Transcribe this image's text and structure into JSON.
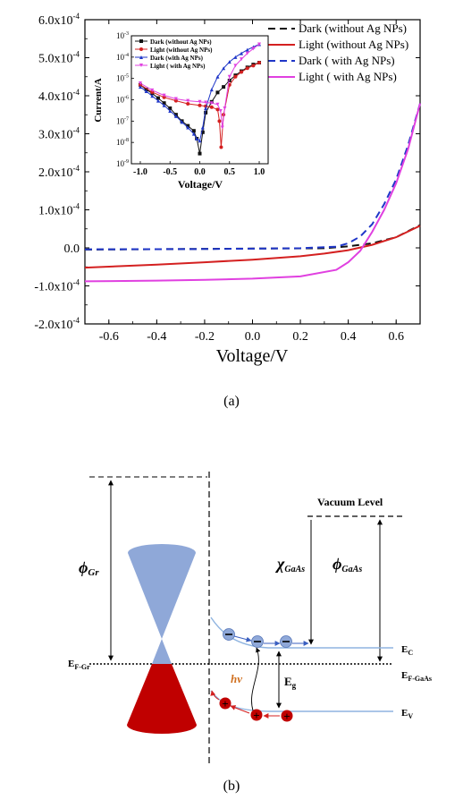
{
  "panel_a": {
    "caption": "(a)",
    "xlabel": "Voltage/V",
    "y_ticks": [
      {
        "mant": "6.0x10",
        "exp": "-4"
      },
      {
        "mant": "5.0x10",
        "exp": "-4"
      },
      {
        "mant": "4.0x10",
        "exp": "-4"
      },
      {
        "mant": "3.0x10",
        "exp": "-4"
      },
      {
        "mant": "2.0x10",
        "exp": "-4"
      },
      {
        "mant": "1.0x10",
        "exp": "-4"
      },
      {
        "mant": "0.0",
        "exp": ""
      },
      {
        "mant": "-1.0x10",
        "exp": "-4"
      },
      {
        "mant": "-2.0x10",
        "exp": "-4"
      }
    ],
    "x_ticks": [
      "-0.6",
      "-0.4",
      "-0.2",
      "0.0",
      "0.2",
      "0.4",
      "0.6"
    ],
    "legend": [
      {
        "label": "Dark (without  Ag NPs)",
        "color": "#111111",
        "dash": "8,5"
      },
      {
        "label": "Light (without  Ag NPs)",
        "color": "#d42020",
        "dash": ""
      },
      {
        "label": "Dark ( with Ag NPs)",
        "color": "#1f36c8",
        "dash": "8,5"
      },
      {
        "label": "Light ( with Ag NPs)",
        "color": "#e040e0",
        "dash": ""
      }
    ],
    "inset": {
      "xlabel": "Voltage/V",
      "ylabel": "Current/A",
      "x_ticks": [
        "-1.0",
        "-0.5",
        "0.0",
        "0.5",
        "1.0"
      ],
      "y_ticks": [
        {
          "mant": "10",
          "exp": "-3"
        },
        {
          "mant": "10",
          "exp": "-4"
        },
        {
          "mant": "10",
          "exp": "-5"
        },
        {
          "mant": "10",
          "exp": "-6"
        },
        {
          "mant": "10",
          "exp": "-7"
        },
        {
          "mant": "10",
          "exp": "-8"
        },
        {
          "mant": "10",
          "exp": "-9"
        }
      ],
      "legend": [
        {
          "label": "Dark (without  Ag NPs)",
          "color": "#111111",
          "marker": "square"
        },
        {
          "label": "Light (without  Ag NPs)",
          "color": "#d42020",
          "marker": "circle"
        },
        {
          "label": "Dark (with Ag NPs)",
          "color": "#1f36c8",
          "marker": "triangle"
        },
        {
          "label": "Light ( with Ag NPs)",
          "color": "#e040e0",
          "marker": "down-triangle"
        }
      ]
    }
  },
  "chart_data": [
    {
      "type": "line",
      "xlabel": "Voltage/V",
      "ylabel": "",
      "xlim": [
        -0.7,
        0.7
      ],
      "ylim": [
        -0.0002,
        0.0006
      ],
      "series": [
        {
          "name": "Dark (without  Ag NPs)",
          "color": "#111111",
          "x": [
            -0.7,
            -0.4,
            0.0,
            0.3,
            0.4,
            0.5,
            0.6,
            0.7
          ],
          "y": [
            -4.5e-06,
            -3.5e-06,
            -2e-06,
            -1e-06,
            4e-06,
            1.2e-05,
            2.8e-05,
            6e-05
          ]
        },
        {
          "name": "Light (without  Ag NPs)",
          "color": "#d42020",
          "x": [
            -0.7,
            -0.4,
            -0.2,
            0.0,
            0.2,
            0.3,
            0.4,
            0.5,
            0.6,
            0.7
          ],
          "y": [
            -5.2e-05,
            -4.4e-05,
            -3.8e-05,
            -3.1e-05,
            -2.2e-05,
            -1.5e-05,
            -6e-06,
            8e-06,
            2.8e-05,
            5.8e-05
          ]
        },
        {
          "name": "Dark ( with Ag NPs)",
          "color": "#1f36c8",
          "x": [
            -0.7,
            -0.2,
            0.2,
            0.35,
            0.4,
            0.45,
            0.5,
            0.55,
            0.6,
            0.65,
            0.7
          ],
          "y": [
            -4e-06,
            -3e-06,
            -1e-06,
            3e-06,
            1.2e-05,
            3e-05,
            6.2e-05,
            0.000115,
            0.00018,
            0.00027,
            0.00038
          ]
        },
        {
          "name": "Light ( with Ag NPs)",
          "color": "#e040e0",
          "x": [
            -0.7,
            -0.4,
            -0.2,
            0.0,
            0.2,
            0.35,
            0.4,
            0.45,
            0.5,
            0.55,
            0.6,
            0.65,
            0.7
          ],
          "y": [
            -8.8e-05,
            -8.6e-05,
            -8.4e-05,
            -8.1e-05,
            -7.5e-05,
            -5.8e-05,
            -3.8e-05,
            -8e-06,
            4.2e-05,
            0.0001,
            0.00017,
            0.00026,
            0.00038
          ]
        }
      ]
    },
    {
      "type": "scatter",
      "xlabel": "Voltage/V",
      "ylabel": "Current/A",
      "xlim": [
        -1.15,
        1.15
      ],
      "ylim": [
        1e-09,
        0.001
      ],
      "yscale": "log",
      "series": [
        {
          "name": "Dark (without  Ag NPs)",
          "color": "#111111",
          "x": [
            -1.0,
            -0.9,
            -0.8,
            -0.7,
            -0.6,
            -0.5,
            -0.4,
            -0.3,
            -0.2,
            -0.1,
            -0.05,
            0.0,
            0.05,
            0.1,
            0.2,
            0.3,
            0.4,
            0.5,
            0.6,
            0.7,
            0.8,
            0.9,
            1.0
          ],
          "y": [
            5e-06,
            3e-06,
            2e-06,
            1.2e-06,
            7e-07,
            4e-07,
            2e-07,
            1e-07,
            6e-08,
            3.5e-08,
            1.5e-08,
            3e-09,
            3e-08,
            2.5e-07,
            8e-07,
            2.2e-06,
            4e-06,
            8e-06,
            1.4e-05,
            2.2e-05,
            3.3e-05,
            4.5e-05,
            5.5e-05
          ]
        },
        {
          "name": "Light (without  Ag NPs)",
          "color": "#d42020",
          "x": [
            -1.0,
            -0.8,
            -0.6,
            -0.4,
            -0.2,
            0.0,
            0.1,
            0.2,
            0.3,
            0.33,
            0.36,
            0.4,
            0.5,
            0.6,
            0.7,
            0.8,
            0.9,
            1.0
          ],
          "y": [
            5e-06,
            2.3e-06,
            1.3e-06,
            9e-07,
            6.5e-07,
            5.5e-07,
            5e-07,
            4.5e-07,
            3.5e-07,
            1e-07,
            6e-09,
            2e-07,
            5e-06,
            1.2e-05,
            2e-05,
            3e-05,
            4e-05,
            5.5e-05
          ]
        },
        {
          "name": "Dark (with Ag NPs)",
          "color": "#1f36c8",
          "x": [
            -1.0,
            -0.9,
            -0.8,
            -0.7,
            -0.6,
            -0.5,
            -0.4,
            -0.3,
            -0.2,
            -0.1,
            -0.05,
            0.0,
            0.05,
            0.1,
            0.2,
            0.3,
            0.4,
            0.5,
            0.6,
            0.7,
            0.8,
            0.9,
            1.0
          ],
          "y": [
            4e-06,
            2.5e-06,
            1.5e-06,
            9e-07,
            5.5e-07,
            3e-07,
            1.7e-07,
            9e-08,
            5e-08,
            2.5e-08,
            1.5e-08,
            1.2e-08,
            5e-08,
            4e-07,
            3e-06,
            1.2e-05,
            3e-05,
            6e-05,
            0.0001,
            0.00015,
            0.00022,
            0.0003,
            0.0004
          ]
        },
        {
          "name": "Light ( with Ag NPs)",
          "color": "#e040e0",
          "x": [
            -1.0,
            -0.8,
            -0.6,
            -0.4,
            -0.2,
            0.0,
            0.1,
            0.2,
            0.3,
            0.35,
            0.38,
            0.42,
            0.5,
            0.6,
            0.7,
            0.8,
            0.9,
            1.0
          ],
          "y": [
            6e-06,
            2.8e-06,
            1.6e-06,
            1.1e-06,
            9e-07,
            8e-07,
            7.5e-07,
            7e-07,
            6e-07,
            3e-07,
            5e-08,
            4e-07,
            1.2e-05,
            4e-05,
            8e-05,
            0.00015,
            0.00025,
            0.0004
          ]
        }
      ]
    }
  ],
  "panel_b": {
    "caption": "(b)",
    "labels": {
      "vacuum": "Vacuum Level",
      "phi_gr": "ϕ",
      "phi_gr_sub": "Gr",
      "chi": "χ",
      "chi_sub": "GaAs",
      "phi_gaas": "ϕ",
      "phi_gaas_sub": "GaAs",
      "ef_gr": "E",
      "ef_gr_sub": "F-Gr",
      "eg": "E",
      "eg_sub": "g",
      "ec": "E",
      "ec_sub": "C",
      "ef_gaas": "E",
      "ef_gaas_sub": "F-GaAs",
      "ev": "E",
      "ev_sub": "V",
      "hv": "hv"
    },
    "colors": {
      "upper_cone": "#8fa8d8",
      "lower_cone": "#c00000",
      "band_line": "#8fb4e0",
      "electron": "#8fa8d8",
      "hole": "#c00000",
      "arrow_blue": "#3a5fc0",
      "arrow_red": "#d42020",
      "hv": "#d07020"
    }
  }
}
